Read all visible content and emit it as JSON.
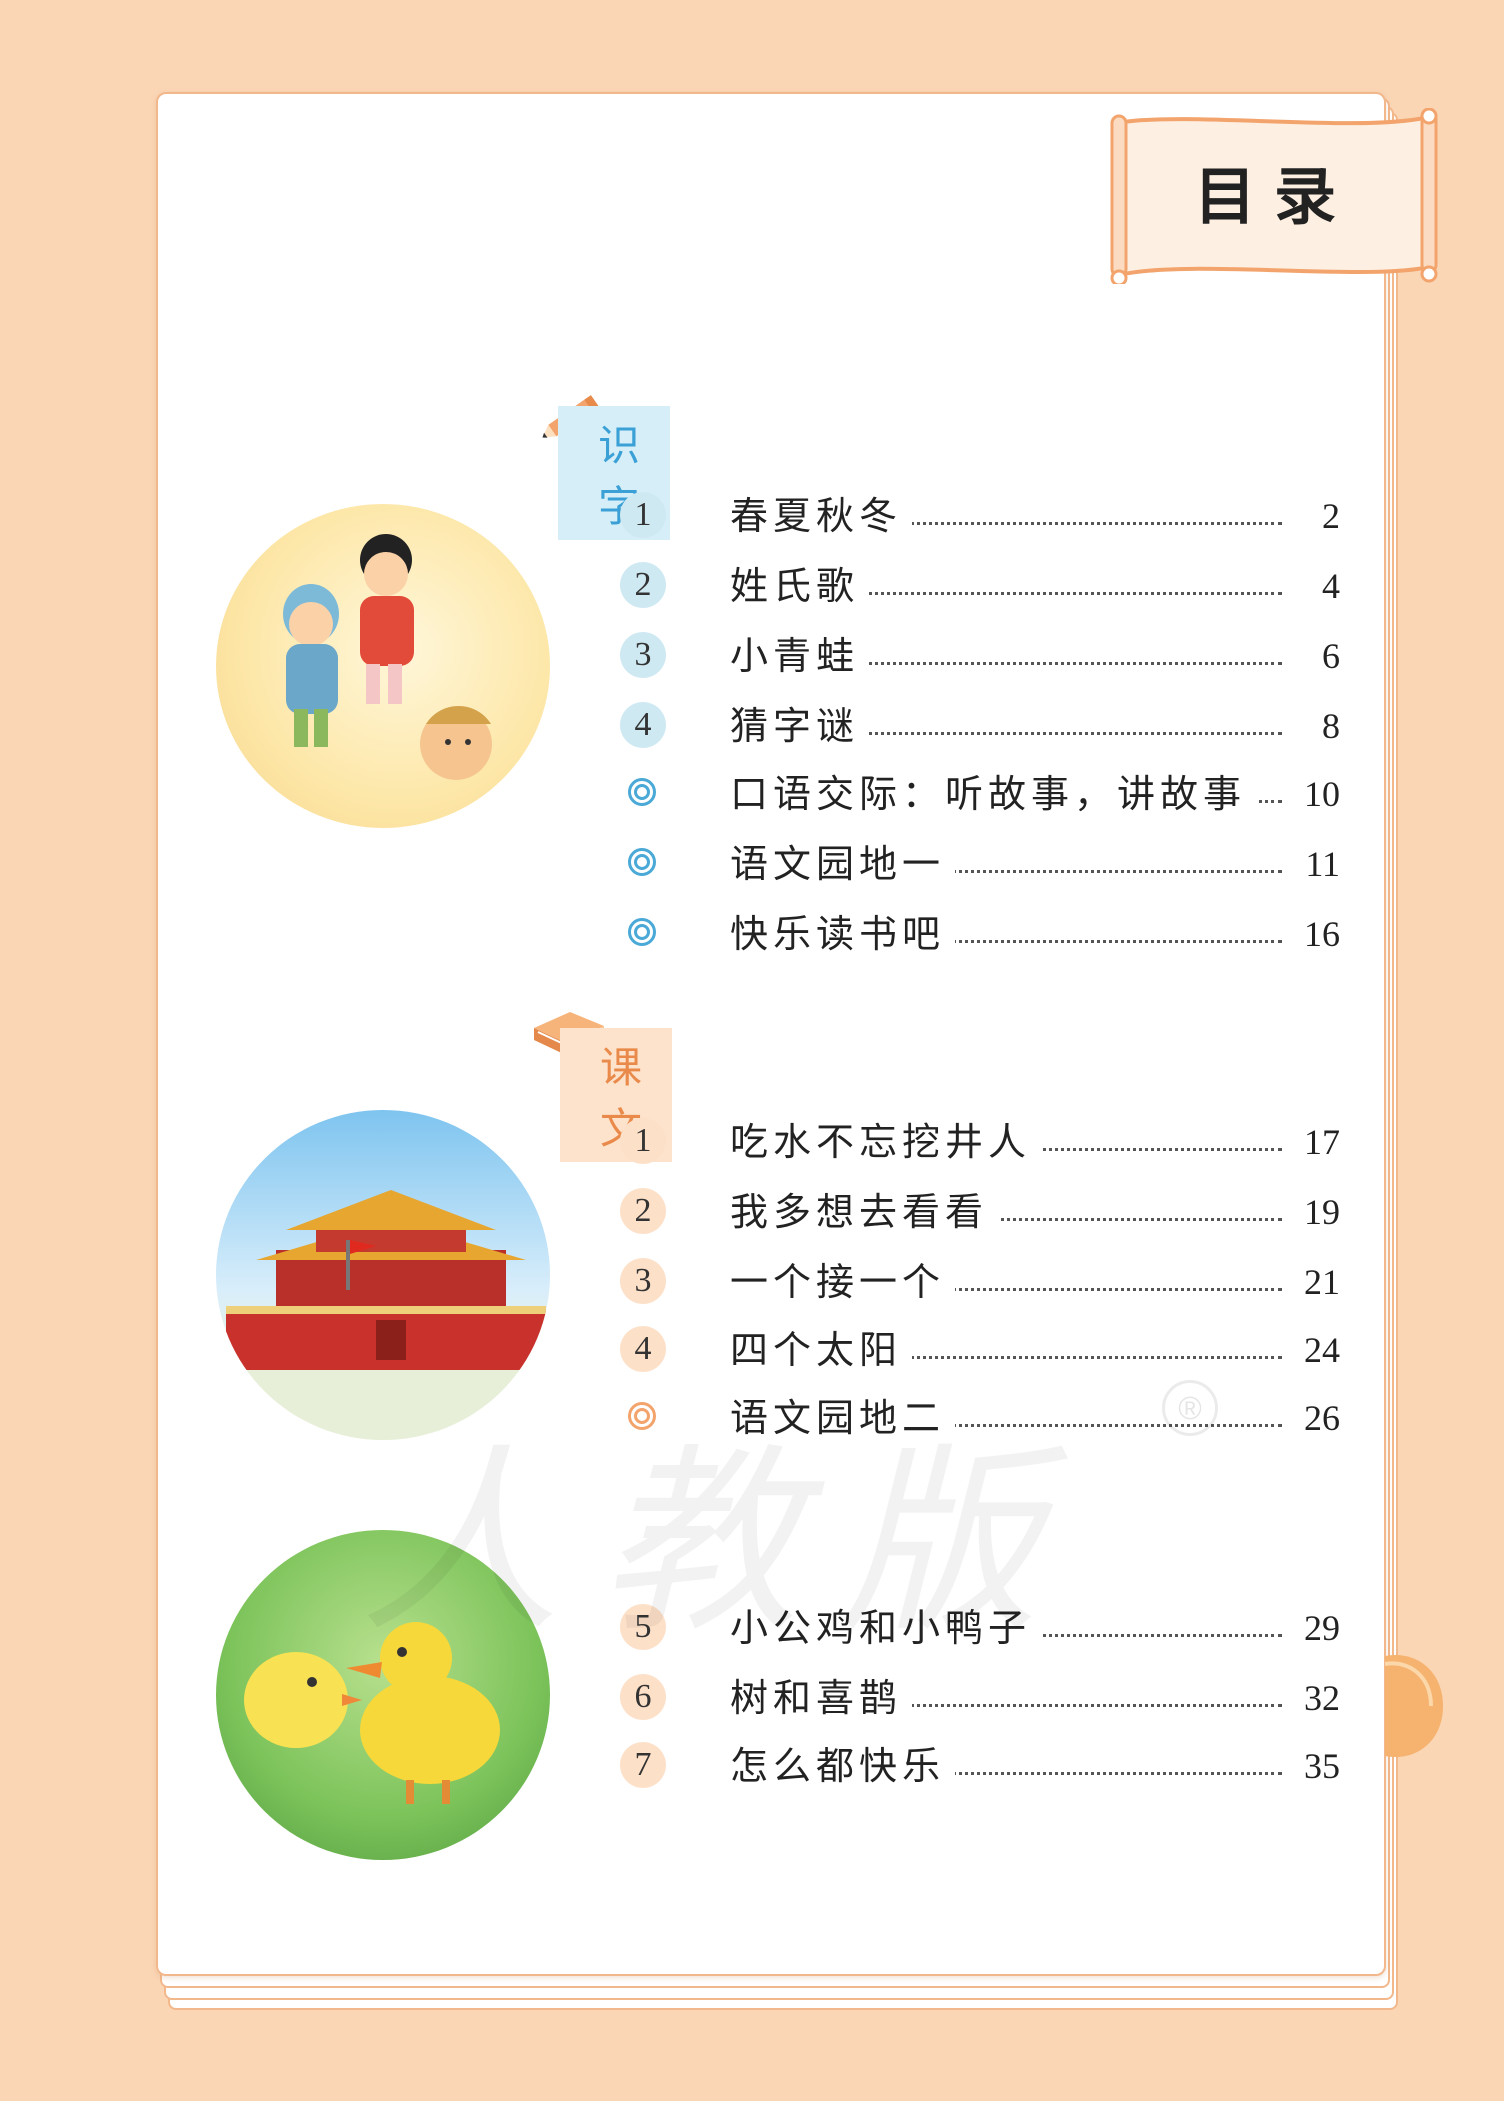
{
  "title": "目录",
  "sections": [
    {
      "label": "识字",
      "entries": [
        {
          "marker": "1",
          "title": "春夏秋冬",
          "page": "2"
        },
        {
          "marker": "2",
          "title": "姓氏歌",
          "page": "4"
        },
        {
          "marker": "3",
          "title": "小青蛙",
          "page": "6"
        },
        {
          "marker": "4",
          "title": "猜字谜",
          "page": "8"
        },
        {
          "marker": "",
          "title": "口语交际：听故事，讲故事",
          "page": "10"
        },
        {
          "marker": "",
          "title": "语文园地一",
          "page": "11"
        },
        {
          "marker": "",
          "title": "快乐读书吧",
          "page": "16"
        }
      ]
    },
    {
      "label": "课文",
      "entries": [
        {
          "marker": "1",
          "title": "吃水不忘挖井人",
          "page": "17"
        },
        {
          "marker": "2",
          "title": "我多想去看看",
          "page": "19"
        },
        {
          "marker": "3",
          "title": "一个接一个",
          "page": "21"
        },
        {
          "marker": "4",
          "title": "四个太阳",
          "page": "24"
        },
        {
          "marker": "",
          "title": "语文园地二",
          "page": "26"
        },
        {
          "marker": "5",
          "title": "小公鸡和小鸭子",
          "page": "29"
        },
        {
          "marker": "6",
          "title": "树和喜鹊",
          "page": "32"
        },
        {
          "marker": "7",
          "title": "怎么都快乐",
          "page": "35"
        }
      ]
    }
  ],
  "colors": {
    "blue_accent": "#4aa9d6",
    "orange_accent": "#f3a46d",
    "border": "#f2b88c",
    "background": "#fbd6b5"
  },
  "watermark": "人教版",
  "registered_mark": "®"
}
